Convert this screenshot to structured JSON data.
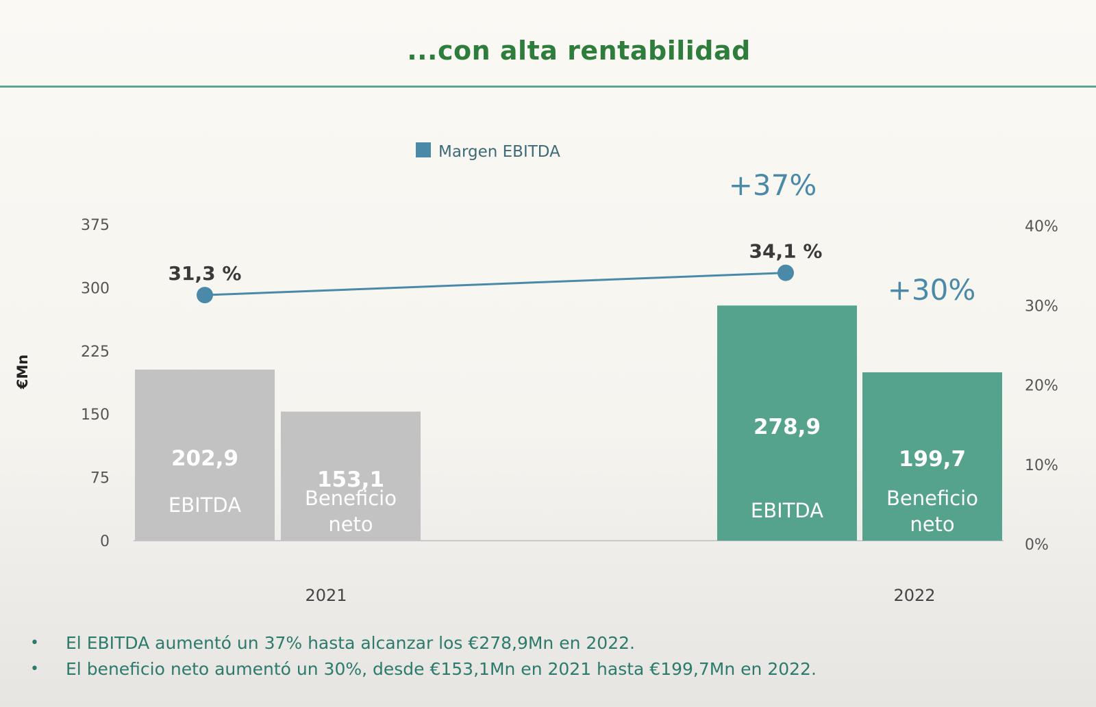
{
  "page": {
    "title": "...con alta rentabilidad"
  },
  "chart_data": {
    "type": "bar",
    "categories": [
      "2021",
      "2022"
    ],
    "ylabel": "€Mn",
    "ylim": [
      0,
      375
    ],
    "yticks": [
      0,
      75,
      150,
      225,
      300,
      375
    ],
    "y2ticks": [
      "0%",
      "10%",
      "20%",
      "30%",
      "40%"
    ],
    "y2lim": [
      0,
      40
    ],
    "bars": [
      {
        "category": "2021",
        "label": "EBITDA",
        "value": 202.9,
        "value_label": "202,9",
        "color": "#c2c2c2"
      },
      {
        "category": "2021",
        "label": "Beneficio neto",
        "value": 153.1,
        "value_label": "153,1",
        "color": "#c2c2c2"
      },
      {
        "category": "2022",
        "label": "EBITDA",
        "value": 278.9,
        "value_label": "278,9",
        "color": "#55a38c"
      },
      {
        "category": "2022",
        "label": "Beneficio neto",
        "value": 199.7,
        "value_label": "199,7",
        "color": "#55a38c"
      }
    ],
    "line_series": {
      "name": "Margen EBITDA",
      "color": "#4a8aa8",
      "values": [
        31.3,
        34.1
      ],
      "value_labels": [
        "31,3 %",
        "34,1 %"
      ]
    },
    "annotations": [
      {
        "text": "+37%",
        "refers_to": "EBITDA 2022"
      },
      {
        "text": "+30%",
        "refers_to": "Beneficio neto 2022"
      }
    ],
    "legend_position": "top-center",
    "grid": false
  },
  "bullets": [
    "El EBITDA aumentó un 37% hasta alcanzar los €278,9Mn en 2022.",
    "El beneficio neto aumentó un 30%, desde €153,1Mn en 2021 hasta €199,7Mn en 2022."
  ],
  "colors": {
    "title": "#2f7d3c",
    "accent_rule": "#5aa78f",
    "bullet_text": "#2c7a6c",
    "growth_label": "#4a8aa8"
  }
}
